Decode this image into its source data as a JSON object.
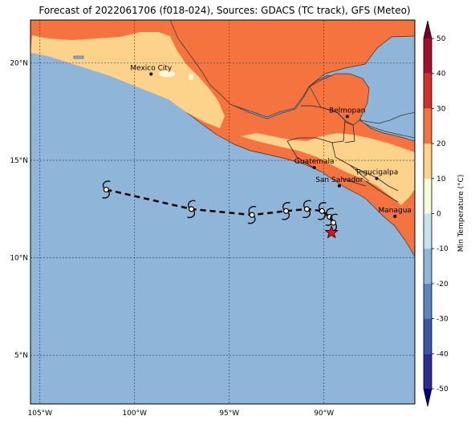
{
  "title": "Forecast of 2022061706 (f018-024), Sources: GDACS (TC track), GFS (Meteo)",
  "map": {
    "projection": "PlateCarree",
    "lon_range": [
      -105.5,
      -85.2
    ],
    "lat_range": [
      2.5,
      22.2
    ],
    "lon_ticks": [
      {
        "value": -105,
        "label": "105°W"
      },
      {
        "value": -100,
        "label": "100°W"
      },
      {
        "value": -95,
        "label": "95°W"
      },
      {
        "value": -90,
        "label": "90°W"
      }
    ],
    "lat_ticks": [
      {
        "value": 20,
        "label": "20°N"
      },
      {
        "value": 15,
        "label": "15°N"
      },
      {
        "value": 10,
        "label": "10°N"
      },
      {
        "value": 5,
        "label": "5°N"
      }
    ],
    "ocean_color": "#8fb5d9",
    "gridlines": true
  },
  "cities": [
    {
      "name": "Mexico City",
      "lon": -99.13,
      "lat": 19.43
    },
    {
      "name": "Belmopan",
      "lon": -88.77,
      "lat": 17.25
    },
    {
      "name": "Guatemala",
      "lon": -90.51,
      "lat": 14.63
    },
    {
      "name": "San Salvador",
      "lon": -89.19,
      "lat": 13.69
    },
    {
      "name": "Tegucigalpa",
      "lon": -87.21,
      "lat": 14.07
    },
    {
      "name": "Managua",
      "lon": -86.25,
      "lat": 12.13
    }
  ],
  "track": [
    {
      "lon": -101.5,
      "lat": 13.5
    },
    {
      "lon": -97.0,
      "lat": 12.5
    },
    {
      "lon": -93.8,
      "lat": 12.2
    },
    {
      "lon": -92.0,
      "lat": 12.4
    },
    {
      "lon": -90.9,
      "lat": 12.5
    },
    {
      "lon": -90.1,
      "lat": 12.4
    },
    {
      "lon": -89.7,
      "lat": 12.1
    },
    {
      "lon": -89.5,
      "lat": 11.8
    }
  ],
  "current_position": {
    "lon": -89.6,
    "lat": 11.3
  },
  "colorbar": {
    "label": "Min Temperature (°C)",
    "min": -50,
    "max": 50,
    "ticks": [
      50,
      40,
      30,
      20,
      10,
      0,
      -10,
      -20,
      -30,
      -40,
      -50
    ],
    "levels": [
      {
        "from": -50,
        "to": -40,
        "color": "#2c2d8f"
      },
      {
        "from": -40,
        "to": -30,
        "color": "#3d55a8"
      },
      {
        "from": -30,
        "to": -20,
        "color": "#5a86bd"
      },
      {
        "from": -20,
        "to": -10,
        "color": "#8fb5d9"
      },
      {
        "from": -10,
        "to": 0,
        "color": "#c6e3ef"
      },
      {
        "from": 0,
        "to": 10,
        "color": "#f6fbd8"
      },
      {
        "from": 10,
        "to": 20,
        "color": "#fdd28a"
      },
      {
        "from": 20,
        "to": 30,
        "color": "#f5733f"
      },
      {
        "from": 30,
        "to": 40,
        "color": "#d13127"
      },
      {
        "from": 40,
        "to": 50,
        "color": "#a40f2b"
      }
    ],
    "over_color": "#7a0022",
    "under_color": "#000080"
  }
}
